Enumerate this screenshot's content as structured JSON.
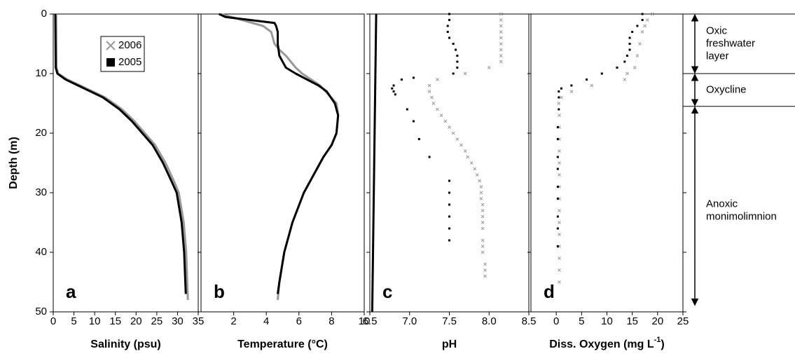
{
  "chart_data": [
    {
      "type": "line",
      "panel_label": "a",
      "xlabel": {
        "text": "Salinity (psu)"
      },
      "xlim": [
        0,
        35
      ],
      "xticks": [
        0,
        5,
        10,
        15,
        20,
        25,
        30,
        35
      ],
      "ylim": [
        0,
        50
      ],
      "yticks": [
        0,
        10,
        20,
        30,
        40,
        50
      ],
      "ytick_labels": true,
      "ylabel": "Depth (m)",
      "legend": true,
      "series": [
        {
          "name": "2006",
          "color": "#999999",
          "marker": "x",
          "x": [
            0.7,
            0.8,
            1.2,
            3.4,
            6.5,
            9.5,
            12.5,
            14.6,
            16.6,
            19.6,
            22.1,
            24.6,
            27.1,
            29.1,
            30.3,
            31.5,
            32.1,
            32.5
          ],
          "y": [
            0,
            9,
            10,
            11,
            12,
            13,
            14,
            15,
            16,
            18,
            20,
            22,
            25,
            28,
            30,
            35,
            40,
            48
          ]
        },
        {
          "name": "2005",
          "color": "#000000",
          "marker": "square",
          "x": [
            0.5,
            0.6,
            1,
            3,
            6,
            9,
            12,
            14,
            16,
            19,
            21.5,
            24,
            26.5,
            28.5,
            29.8,
            31,
            31.6,
            32
          ],
          "y": [
            0,
            9,
            10,
            11,
            12,
            13,
            14,
            15,
            16,
            18,
            20,
            22,
            25,
            28,
            30,
            35,
            40,
            47
          ]
        }
      ]
    },
    {
      "type": "line",
      "panel_label": "b",
      "xlabel": {
        "text": "Temperature (°C)"
      },
      "xlim": [
        0,
        10
      ],
      "xticks": [
        2,
        4,
        6,
        8,
        10
      ],
      "ylim": [
        0,
        50
      ],
      "yticks": [
        0,
        10,
        20,
        30,
        40,
        50
      ],
      "ytick_labels": false,
      "series": [
        {
          "name": "2006",
          "color": "#999999",
          "x": [
            1.2,
            2.5,
            3.8,
            4.3,
            4.5,
            4.8,
            5.2,
            5.5,
            5.8,
            6.2,
            7.3,
            8.3,
            8.4,
            8.3,
            8.0,
            7.5,
            6.9,
            6.3,
            5.6,
            5.1,
            4.8,
            4.7
          ],
          "y": [
            0,
            1,
            2,
            3,
            5,
            6,
            7,
            8,
            9,
            10,
            12,
            15,
            17,
            20,
            22,
            24,
            27,
            30,
            35,
            40,
            45,
            48
          ]
        },
        {
          "name": "2005",
          "color": "#000000",
          "x": [
            1.1,
            1.5,
            3,
            4.5,
            4.6,
            4.7,
            4.7,
            4.8,
            5,
            5.2,
            5.8,
            6.5,
            7.2,
            7.7,
            8.2,
            8.4,
            8.3,
            8.0,
            7.5,
            6.9,
            6.3,
            5.6,
            5.1,
            4.8,
            4.7
          ],
          "y": [
            0,
            0.5,
            1,
            1.5,
            2,
            3,
            5,
            7,
            8,
            9,
            10,
            11,
            12,
            13,
            15,
            17,
            20,
            22,
            24,
            27,
            30,
            35,
            40,
            45,
            47
          ]
        }
      ]
    },
    {
      "type": "scatter",
      "panel_label": "c",
      "xlabel": {
        "text": "pH"
      },
      "xlim": [
        6.5,
        8.5
      ],
      "xticks": [
        6.5,
        {
          "value": 7,
          "label": "7.0"
        },
        7.5,
        {
          "value": 8,
          "label": "8.0"
        },
        8.5
      ],
      "ylim": [
        0,
        50
      ],
      "yticks": [
        0,
        10,
        20,
        30,
        40,
        50
      ],
      "ytick_labels": false,
      "series": [
        {
          "color": "#000000",
          "x": [
            6.58,
            6.53
          ],
          "y": [
            0,
            50
          ]
        },
        {
          "name": "2006",
          "color": "#999999",
          "marker": "x",
          "x": [
            8.15,
            8.15,
            8.15,
            8.15,
            8.15,
            8.15,
            8.15,
            8.15,
            8.15,
            8.0,
            7.7,
            7.35,
            7.25,
            7.25,
            7.28,
            7.3,
            7.35,
            7.4,
            7.45,
            7.5,
            7.55,
            7.6,
            7.65,
            7.7,
            7.73,
            7.78,
            7.82,
            7.85,
            7.88,
            7.9,
            7.9,
            7.9,
            7.92,
            7.92,
            7.92,
            7.92,
            7.92,
            7.92,
            7.92,
            7.92,
            7.95,
            7.95,
            7.95
          ],
          "y": [
            0,
            1,
            2,
            3,
            4,
            5,
            6,
            7,
            8,
            9,
            10,
            11,
            12,
            13,
            14,
            15,
            16,
            17,
            18,
            19,
            20,
            21,
            22,
            23,
            24,
            25,
            26,
            27,
            28,
            29,
            30,
            31,
            32,
            33,
            34,
            35,
            36,
            38,
            39,
            40,
            42,
            43,
            44
          ]
        },
        {
          "name": "2005",
          "color": "#000000",
          "marker": "square",
          "x": [
            7.5,
            7.5,
            7.48,
            7.48,
            7.5,
            7.55,
            7.58,
            7.6,
            7.6,
            7.6,
            7.55,
            7.05,
            6.9,
            6.8,
            6.78,
            6.8,
            6.82,
            6.97,
            7.05,
            7.12,
            7.25,
            7.5,
            7.5,
            7.5,
            7.5,
            7.5,
            7.5
          ],
          "y": [
            0,
            1,
            2,
            3,
            4,
            5,
            6,
            7,
            8,
            9,
            10,
            10.7,
            11,
            12,
            12.5,
            13,
            13.5,
            16,
            18,
            21,
            24,
            28,
            30,
            32,
            34,
            36,
            38
          ]
        }
      ]
    },
    {
      "type": "scatter",
      "panel_label": "d",
      "xlabel": {
        "text": "Diss. Oxygen (mg L",
        "sup": "-1",
        "end": ")"
      },
      "xlim": [
        -5,
        25
      ],
      "xticks": [
        0,
        5,
        10,
        15,
        20,
        25
      ],
      "ylim": [
        0,
        50
      ],
      "yticks": [
        0,
        10,
        20,
        30,
        40,
        50
      ],
      "ytick_labels": false,
      "series": [
        {
          "name": "2006",
          "color": "#999999",
          "marker": "x",
          "x": [
            19,
            18,
            17.5,
            17,
            16.5,
            16,
            15.5,
            14,
            13.5,
            7,
            3,
            1,
            0.5,
            0.6,
            0.6,
            0.6,
            0.6,
            0.6,
            0.6,
            0.6,
            0.6,
            0.6,
            0.6,
            0.6,
            0.6,
            0.6,
            0.6,
            0.6
          ],
          "y": [
            0,
            1,
            2,
            3,
            5,
            7,
            9,
            10,
            11,
            12,
            13,
            14,
            15,
            17,
            19,
            21,
            23,
            25,
            27,
            29,
            31,
            33,
            35,
            37,
            39,
            41,
            43,
            45
          ]
        },
        {
          "name": "2005",
          "color": "#000000",
          "marker": "square",
          "x": [
            17,
            17,
            16,
            15,
            14.5,
            14.5,
            14.5,
            14,
            13.5,
            12,
            9,
            6,
            3,
            1,
            0.5,
            0.5,
            0.5,
            0.3,
            0.3,
            0.3,
            0.3,
            0.3,
            0.3,
            0.3,
            0.3,
            0.3
          ],
          "y": [
            0,
            1,
            2,
            3,
            4,
            5,
            6,
            7,
            8,
            9,
            10,
            11,
            12,
            12.5,
            13,
            14,
            16,
            19,
            21,
            24,
            26,
            29,
            31,
            34,
            36,
            39
          ]
        }
      ]
    }
  ],
  "zones": [
    {
      "lines": [
        "Oxic",
        "freshwater",
        "layer"
      ],
      "top": 0,
      "bottom": 10
    },
    {
      "lines": [
        "Oxycline"
      ],
      "top": 10,
      "bottom": 15.5
    },
    {
      "lines": [
        "Anoxic",
        "monimolimnion"
      ],
      "top": 15.5,
      "bottom": 49
    }
  ]
}
